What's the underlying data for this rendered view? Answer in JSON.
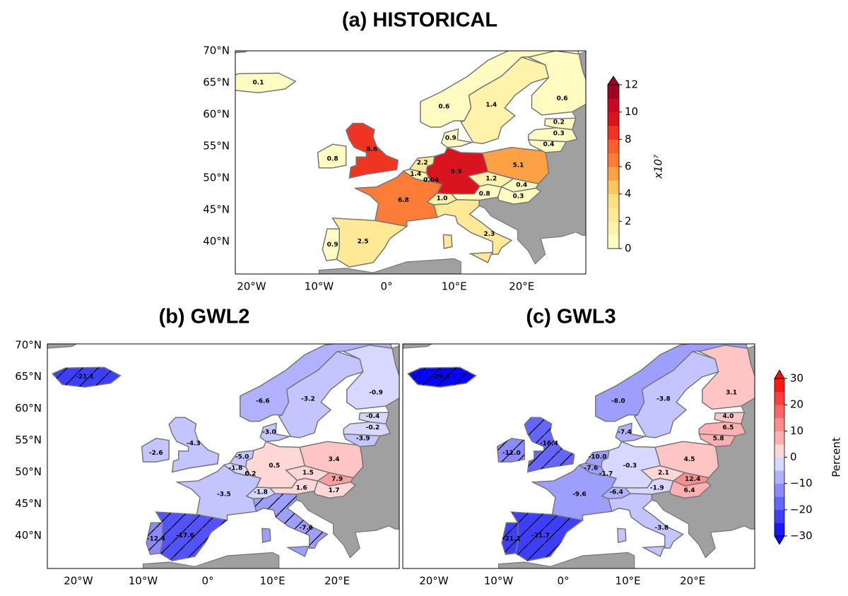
{
  "panels": [
    {
      "title": "(a) HISTORICAL",
      "xlim": [
        -22.4,
        29.5
      ],
      "ylim": [
        34.9,
        70
      ],
      "yticks": [
        {
          "value": 40,
          "label": "40°N"
        },
        {
          "value": 45,
          "label": "45°N"
        },
        {
          "value": 50,
          "label": "50°N"
        },
        {
          "value": 55,
          "label": "55°N"
        },
        {
          "value": 60,
          "label": "60°N"
        },
        {
          "value": 65,
          "label": "65°N"
        },
        {
          "value": 70,
          "label": "70°N"
        }
      ],
      "xticks": [
        {
          "value": -20,
          "label": "20°W"
        },
        {
          "value": -10,
          "label": "10°W"
        },
        {
          "value": 0,
          "label": "0°"
        },
        {
          "value": 10,
          "label": "10°E"
        },
        {
          "value": 20,
          "label": "20°E"
        }
      ],
      "values": [
        0.1,
        0.8,
        8.6,
        6.8,
        2.5,
        0.9,
        1.4,
        2.2,
        0.04,
        9.9,
        0.9,
        1.0,
        0.8,
        1.2,
        0.4,
        0.3,
        5.1,
        2.3,
        0.6,
        1.4,
        0.6,
        0.2,
        0.3,
        0.4
      ],
      "value_labels": [
        "0.1",
        "0.8",
        "8.6",
        "6.8",
        "2.5",
        "0.9",
        "1.4",
        "2.2",
        "0.04",
        "9.9",
        "0.9",
        "1.0",
        "0.8",
        "1.2",
        "0.4",
        "0.3",
        "5.1",
        "2.3",
        "0.6",
        "1.4",
        "0.6",
        "0.2",
        "0.3",
        "0.4"
      ],
      "colormap": "YlOrRd",
      "colorbar": {
        "label": "x10⁷",
        "lim": [
          0,
          12
        ],
        "ticks": [
          0,
          2,
          4,
          6,
          8,
          10,
          12
        ]
      }
    },
    {
      "title": "(b) GWL2",
      "xlim": [
        -24.8,
        29.6
      ],
      "ylim": [
        34.8,
        70.2
      ],
      "yticks": [
        {
          "value": 40,
          "label": "40°N"
        },
        {
          "value": 45,
          "label": "45°N"
        },
        {
          "value": 50,
          "label": "50°N"
        },
        {
          "value": 55,
          "label": "55°N"
        },
        {
          "value": 60,
          "label": "60°N"
        },
        {
          "value": 65,
          "label": "65°N"
        },
        {
          "value": 70,
          "label": "70°N"
        }
      ],
      "xticks": [
        {
          "value": -20,
          "label": "20°W"
        },
        {
          "value": -10,
          "label": "10°W"
        },
        {
          "value": 0,
          "label": "0°"
        },
        {
          "value": 10,
          "label": "10°E"
        },
        {
          "value": 20,
          "label": "20°E"
        }
      ],
      "values": [
        -21.1,
        -2.6,
        -4.3,
        -3.5,
        -17.6,
        -12.4,
        -1.8,
        -5.0,
        0.2,
        0.5,
        -3.0,
        -1.8,
        1.6,
        1.5,
        7.9,
        1.7,
        3.4,
        -7.6,
        -6.6,
        -3.2,
        -0.9,
        -0.4,
        -0.2,
        -3.9
      ],
      "value_labels": [
        "-21.1",
        "-2.6",
        "-4.3",
        "-3.5",
        "-17.6",
        "-12.4",
        "-1.8",
        "-5.0",
        "0.2",
        "0.5",
        "-3.0",
        "-1.8",
        "1.6",
        "1.5",
        "7.9",
        "1.7",
        "3.4",
        "-7.6",
        "-6.6",
        "-3.2",
        "-0.9",
        "-0.4",
        "-0.2",
        "-3.9"
      ],
      "colormap": "bwr"
    },
    {
      "title": "(c) GWL3",
      "xlim": [
        -24.8,
        29.6
      ],
      "ylim": [
        34.8,
        70.2
      ],
      "xticks": [
        {
          "value": -20,
          "label": "20°W"
        },
        {
          "value": -10,
          "label": "10°W"
        },
        {
          "value": 0,
          "label": "0°"
        },
        {
          "value": 10,
          "label": "10°E"
        },
        {
          "value": 20,
          "label": "20°E"
        }
      ],
      "values": [
        -29.8,
        -12.0,
        -16.4,
        -9.6,
        -21.7,
        -21.1,
        -7.6,
        -10.0,
        -1.7,
        -0.3,
        -7.4,
        -6.4,
        -1.9,
        2.1,
        12.4,
        6.4,
        4.5,
        -3.8,
        -8.0,
        -3.8,
        3.1,
        4.0,
        6.5,
        5.8
      ],
      "value_labels": [
        "-29.8",
        "-12.0",
        "-16.4",
        "-9.6",
        "-21.7",
        "-21.1",
        "-7.6",
        "-10.0",
        "-1.7",
        "-0.3",
        "-7.4",
        "-6.4",
        "-1.9",
        "2.1",
        "12.4",
        "6.4",
        "4.5",
        "-3.8",
        "-8.0",
        "-3.8",
        "3.1",
        "4.0",
        "6.5",
        "5.8"
      ],
      "colormap": "bwr",
      "colorbar": {
        "label": "Percent",
        "lim": [
          -30,
          30
        ],
        "ticks": [
          {
            "value": -30,
            "label": "−30"
          },
          {
            "value": -20,
            "label": "−20"
          },
          {
            "value": -10,
            "label": "−10"
          },
          0,
          10,
          20,
          30
        ]
      }
    }
  ]
}
